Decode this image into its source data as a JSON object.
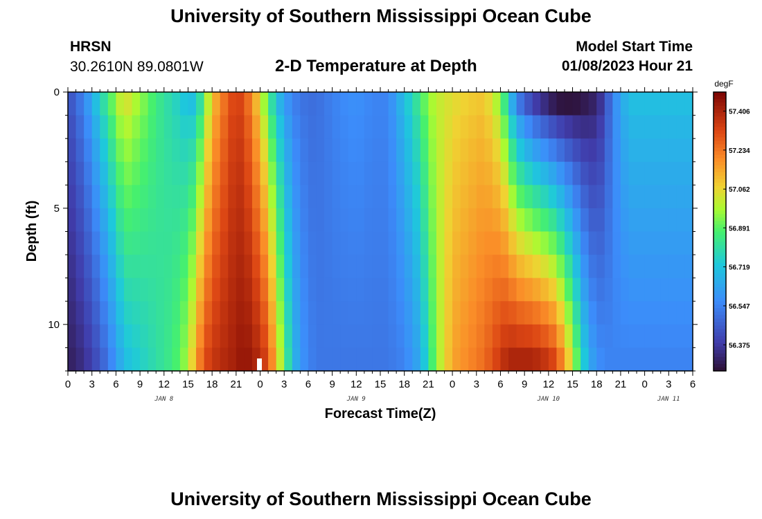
{
  "header": {
    "title": "University of Southern Mississippi Ocean Cube",
    "station": "HRSN",
    "coordinates": "30.2610N  89.0801W",
    "plot_title": "2-D Temperature at Depth",
    "start_label": "Model Start Time",
    "start_value": "01/08/2023 Hour 21"
  },
  "footer": {
    "title": "University of Southern Mississippi Ocean Cube"
  },
  "chart_data": {
    "type": "heatmap",
    "title": "2-D Temperature at Depth",
    "xlabel": "Forecast Time(Z)",
    "ylabel": "Depth (ft)",
    "units": "degF",
    "x_start_hour": 0,
    "x_end_hour": 78,
    "x_step_hours": 1,
    "y_range_ft": [
      0,
      12
    ],
    "y_ticks": [
      0,
      5,
      10
    ],
    "x_tick_labels": [
      "0",
      "3",
      "6",
      "9",
      "12",
      "15",
      "18",
      "21",
      "0",
      "3",
      "6",
      "9",
      "12",
      "15",
      "18",
      "21",
      "0",
      "3",
      "6",
      "9",
      "12",
      "15",
      "18",
      "21",
      "0",
      "3",
      "6"
    ],
    "date_labels": [
      {
        "label": "JAN 8",
        "hour": 12
      },
      {
        "label": "JAN 9",
        "hour": 36
      },
      {
        "label": "JAN 10",
        "hour": 60
      },
      {
        "label": "JAN 11",
        "hour": 75
      }
    ],
    "depth_levels_ft": [
      0.5,
      1.5,
      2.5,
      3.5,
      4.5,
      5.5,
      6.5,
      7.5,
      8.5,
      9.5,
      10.5,
      11.5
    ],
    "colorbar": {
      "min": 56.26,
      "max": 57.49,
      "tick_values": [
        56.375,
        56.547,
        56.719,
        56.891,
        57.062,
        57.234,
        57.406
      ],
      "tick_labels": [
        "56.375",
        "56.547",
        "56.719",
        "56.891",
        "57.062",
        "57.234",
        "57.406"
      ]
    },
    "time_series_keyframes": {
      "hours": [
        0,
        2,
        4,
        6,
        7,
        9,
        11,
        13,
        14,
        15,
        16,
        17,
        18,
        19,
        20,
        21,
        22,
        23,
        24,
        25,
        26,
        27,
        28,
        29,
        30,
        31,
        32,
        34,
        36,
        38,
        40,
        42,
        44,
        45,
        46,
        48,
        50,
        52,
        54,
        55,
        56,
        58,
        60,
        61,
        62,
        63,
        64,
        65,
        66,
        67,
        68,
        70,
        72,
        74,
        76,
        78
      ],
      "surface": [
        56.42,
        56.55,
        56.75,
        56.95,
        57.05,
        56.95,
        56.85,
        56.78,
        56.75,
        56.7,
        56.72,
        56.9,
        57.1,
        57.2,
        57.28,
        57.35,
        57.3,
        57.2,
        57.05,
        56.88,
        56.72,
        56.62,
        56.55,
        56.52,
        56.5,
        56.5,
        56.52,
        56.56,
        56.58,
        56.55,
        56.55,
        56.7,
        56.85,
        56.95,
        57.0,
        57.05,
        57.08,
        57.1,
        56.95,
        56.75,
        56.55,
        56.4,
        56.32,
        56.28,
        56.27,
        56.27,
        56.28,
        56.3,
        56.32,
        56.4,
        56.55,
        56.7,
        56.7,
        56.7,
        56.7,
        56.7
      ],
      "bottom": [
        56.3,
        56.35,
        56.45,
        56.6,
        56.7,
        56.75,
        56.8,
        56.85,
        56.9,
        56.98,
        57.15,
        57.3,
        57.35,
        57.38,
        57.4,
        57.42,
        57.45,
        57.42,
        57.38,
        57.3,
        57.1,
        56.9,
        56.7,
        56.6,
        56.55,
        56.52,
        56.52,
        56.52,
        56.52,
        56.52,
        56.52,
        56.55,
        56.65,
        56.8,
        56.95,
        57.15,
        57.2,
        57.25,
        57.35,
        57.4,
        57.4,
        57.4,
        57.35,
        57.3,
        57.15,
        57.0,
        56.8,
        56.65,
        56.58,
        56.55,
        56.55,
        56.55,
        56.55,
        56.55,
        56.55,
        56.55
      ]
    }
  }
}
